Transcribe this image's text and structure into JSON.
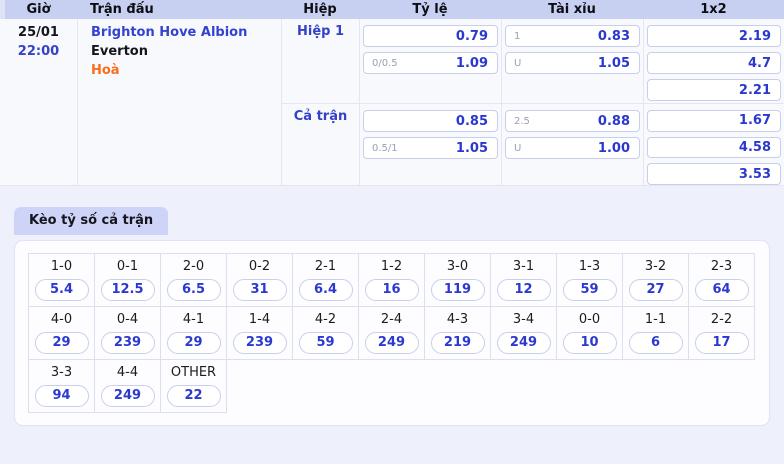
{
  "colors": {
    "page_bg": "#eef0fb",
    "header_bg": "#c8d0f2",
    "tab_bg": "#cdd4f7",
    "link_blue": "#3443cf",
    "odds_blue": "#2b38cf",
    "draw_orange": "#f76f1c"
  },
  "match_table": {
    "headers": {
      "time": "Giờ",
      "match": "Trận đấu",
      "period": "Hiệp",
      "handicap": "Tỷ lệ",
      "over_under": "Tài xỉu",
      "one_x_two": "1x2"
    },
    "row": {
      "date": "25/01",
      "time": "22:00",
      "home_team": "Brighton Hove Albion",
      "away_team": "Everton",
      "prediction": "Hoà",
      "sections": [
        {
          "period": "Hiệp 1",
          "handicap": [
            {
              "hdp": "",
              "odds": "0.79"
            },
            {
              "hdp": "0/0.5",
              "odds": "1.09"
            }
          ],
          "over_under": [
            {
              "hdp": "1",
              "odds": "0.83"
            },
            {
              "hdp": "U",
              "odds": "1.05"
            }
          ],
          "one_x_two": [
            "2.19",
            "4.7",
            "2.21"
          ]
        },
        {
          "period": "Cả trận",
          "handicap": [
            {
              "hdp": "",
              "odds": "0.85"
            },
            {
              "hdp": "0.5/1",
              "odds": "1.05"
            }
          ],
          "over_under": [
            {
              "hdp": "2.5",
              "odds": "0.88"
            },
            {
              "hdp": "U",
              "odds": "1.00"
            }
          ],
          "one_x_two": [
            "1.67",
            "4.58",
            "3.53"
          ]
        }
      ]
    }
  },
  "score_section": {
    "tab": "Kèo tỷ số cả trận",
    "rows": [
      [
        {
          "score": "1-0",
          "odds": "5.4"
        },
        {
          "score": "0-1",
          "odds": "12.5"
        },
        {
          "score": "2-0",
          "odds": "6.5"
        },
        {
          "score": "0-2",
          "odds": "31"
        },
        {
          "score": "2-1",
          "odds": "6.4"
        },
        {
          "score": "1-2",
          "odds": "16"
        },
        {
          "score": "3-0",
          "odds": "119"
        },
        {
          "score": "3-1",
          "odds": "12"
        },
        {
          "score": "1-3",
          "odds": "59"
        },
        {
          "score": "3-2",
          "odds": "27"
        },
        {
          "score": "2-3",
          "odds": "64"
        }
      ],
      [
        {
          "score": "4-0",
          "odds": "29"
        },
        {
          "score": "0-4",
          "odds": "239"
        },
        {
          "score": "4-1",
          "odds": "29"
        },
        {
          "score": "1-4",
          "odds": "239"
        },
        {
          "score": "4-2",
          "odds": "59"
        },
        {
          "score": "2-4",
          "odds": "249"
        },
        {
          "score": "4-3",
          "odds": "219"
        },
        {
          "score": "3-4",
          "odds": "249"
        },
        {
          "score": "0-0",
          "odds": "10"
        },
        {
          "score": "1-1",
          "odds": "6"
        },
        {
          "score": "2-2",
          "odds": "17"
        }
      ],
      [
        {
          "score": "3-3",
          "odds": "94"
        },
        {
          "score": "4-4",
          "odds": "249"
        },
        {
          "score": "OTHER",
          "odds": "22"
        }
      ]
    ]
  }
}
